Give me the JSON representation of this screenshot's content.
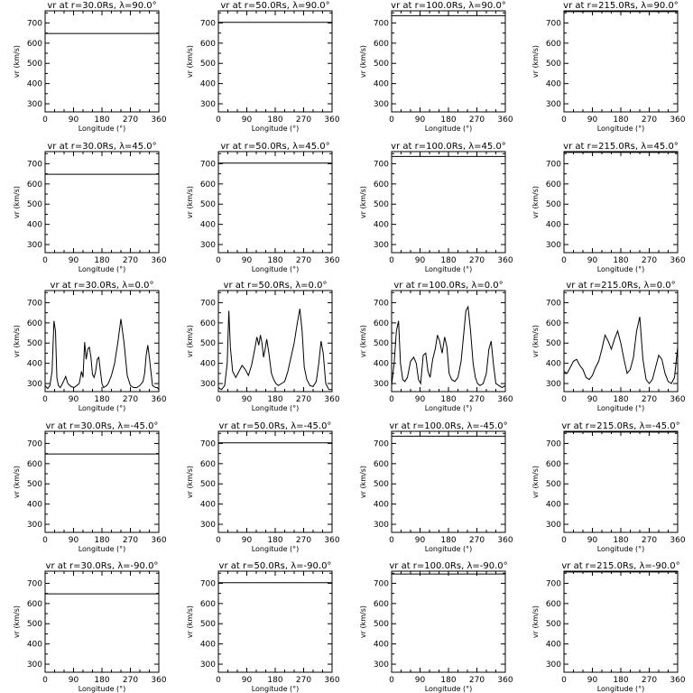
{
  "chart_data": {
    "type": "line",
    "xlabel": "Longitude (°)",
    "ylabel": "vr (km/s)",
    "xlim": [
      0,
      360
    ],
    "ylim": [
      260,
      760
    ],
    "xticks": [
      "0",
      "90",
      "180",
      "270",
      "360"
    ],
    "yticks": [
      "300",
      "400",
      "500",
      "600",
      "700"
    ],
    "panels": [
      {
        "title": "vr at r=30.0Rs,  λ=90.0°",
        "type": "constant",
        "value": 648
      },
      {
        "title": "vr at r=50.0Rs,  λ=90.0°",
        "type": "constant",
        "value": 703
      },
      {
        "title": "vr at r=100.0Rs,  λ=90.0°",
        "type": "constant",
        "value": 736
      },
      {
        "title": "vr at r=215.0Rs,  λ=90.0°",
        "type": "constant",
        "value": 756
      },
      {
        "title": "vr at r=30.0Rs,  λ=45.0°",
        "type": "constant",
        "value": 648
      },
      {
        "title": "vr at r=50.0Rs,  λ=45.0°",
        "type": "constant",
        "value": 703
      },
      {
        "title": "vr at r=100.0Rs,  λ=45.0°",
        "type": "constant",
        "value": 736
      },
      {
        "title": "vr at r=215.0Rs,  λ=45.0°",
        "type": "constant",
        "value": 756
      },
      {
        "title": "vr at r=30.0Rs,  λ=0.0°",
        "type": "series",
        "x": [
          0,
          8,
          15,
          22,
          28,
          33,
          37,
          42,
          48,
          55,
          65,
          72,
          82,
          92,
          100,
          108,
          115,
          120,
          125,
          130,
          135,
          140,
          145,
          150,
          155,
          160,
          165,
          170,
          175,
          180,
          185,
          190,
          195,
          200,
          210,
          220,
          230,
          240,
          250,
          260,
          270,
          280,
          290,
          300,
          310,
          315,
          320,
          325,
          330,
          340,
          350,
          355,
          360
        ],
        "y": [
          290,
          275,
          290,
          360,
          610,
          560,
          330,
          290,
          280,
          300,
          335,
          300,
          285,
          280,
          290,
          300,
          360,
          330,
          505,
          420,
          470,
          480,
          430,
          345,
          330,
          360,
          420,
          430,
          360,
          300,
          280,
          285,
          290,
          300,
          340,
          400,
          500,
          620,
          500,
          340,
          290,
          280,
          280,
          290,
          310,
          350,
          440,
          490,
          430,
          290,
          280,
          280,
          270
        ]
      },
      {
        "title": "vr at r=50.0Rs,  λ=0.0°",
        "type": "series",
        "x": [
          0,
          10,
          20,
          28,
          33,
          38,
          45,
          55,
          65,
          75,
          85,
          95,
          105,
          115,
          122,
          128,
          133,
          138,
          143,
          148,
          153,
          160,
          168,
          175,
          182,
          190,
          200,
          210,
          220,
          230,
          240,
          250,
          258,
          265,
          272,
          280,
          290,
          300,
          310,
          318,
          325,
          332,
          340,
          350,
          360
        ],
        "y": [
          280,
          270,
          290,
          400,
          660,
          480,
          360,
          330,
          360,
          390,
          370,
          340,
          390,
          470,
          530,
          490,
          540,
          500,
          430,
          470,
          520,
          450,
          350,
          320,
          300,
          290,
          300,
          310,
          360,
          430,
          500,
          600,
          670,
          560,
          380,
          320,
          290,
          285,
          310,
          400,
          510,
          450,
          300,
          270,
          270
        ]
      },
      {
        "title": "vr at r=100.0Rs,  λ=0.0°",
        "type": "series",
        "x": [
          0,
          8,
          15,
          22,
          28,
          35,
          42,
          50,
          60,
          70,
          78,
          85,
          92,
          100,
          108,
          115,
          122,
          130,
          138,
          145,
          152,
          160,
          168,
          175,
          182,
          190,
          200,
          210,
          220,
          228,
          235,
          242,
          250,
          258,
          265,
          272,
          280,
          290,
          300,
          308,
          315,
          322,
          330,
          340,
          350,
          360
        ],
        "y": [
          290,
          400,
          560,
          610,
          400,
          320,
          310,
          330,
          410,
          430,
          400,
          320,
          300,
          440,
          450,
          360,
          330,
          420,
          470,
          540,
          510,
          450,
          530,
          480,
          350,
          320,
          310,
          330,
          410,
          540,
          660,
          680,
          560,
          400,
          330,
          300,
          290,
          300,
          350,
          470,
          510,
          400,
          300,
          290,
          280,
          290
        ]
      },
      {
        "title": "vr at r=215.0Rs,  λ=0.0°",
        "type": "series",
        "x": [
          0,
          10,
          20,
          30,
          40,
          50,
          60,
          70,
          80,
          90,
          100,
          110,
          120,
          130,
          140,
          150,
          160,
          170,
          180,
          190,
          200,
          210,
          220,
          230,
          240,
          250,
          260,
          270,
          280,
          290,
          300,
          310,
          320,
          330,
          340,
          350,
          360
        ],
        "y": [
          360,
          350,
          380,
          410,
          420,
          390,
          370,
          330,
          320,
          340,
          380,
          410,
          470,
          540,
          510,
          470,
          520,
          560,
          500,
          420,
          350,
          370,
          430,
          560,
          630,
          420,
          320,
          300,
          320,
          380,
          440,
          420,
          350,
          310,
          300,
          330,
          480
        ]
      },
      {
        "title": "vr at r=30.0Rs,  λ=-45.0°",
        "type": "constant",
        "value": 648
      },
      {
        "title": "vr at r=50.0Rs,  λ=-45.0°",
        "type": "constant",
        "value": 703
      },
      {
        "title": "vr at r=100.0Rs,  λ=-45.0°",
        "type": "constant",
        "value": 736
      },
      {
        "title": "vr at r=215.0Rs,  λ=-45.0°",
        "type": "constant",
        "value": 756
      },
      {
        "title": "vr at r=30.0Rs,  λ=-90.0°",
        "type": "constant",
        "value": 648
      },
      {
        "title": "vr at r=50.0Rs,  λ=-90.0°",
        "type": "constant",
        "value": 703
      },
      {
        "title": "vr at r=100.0Rs,  λ=-90.0°",
        "type": "constant",
        "value": 746
      },
      {
        "title": "vr at r=215.0Rs,  λ=-90.0°",
        "type": "constant",
        "value": 756
      }
    ]
  }
}
